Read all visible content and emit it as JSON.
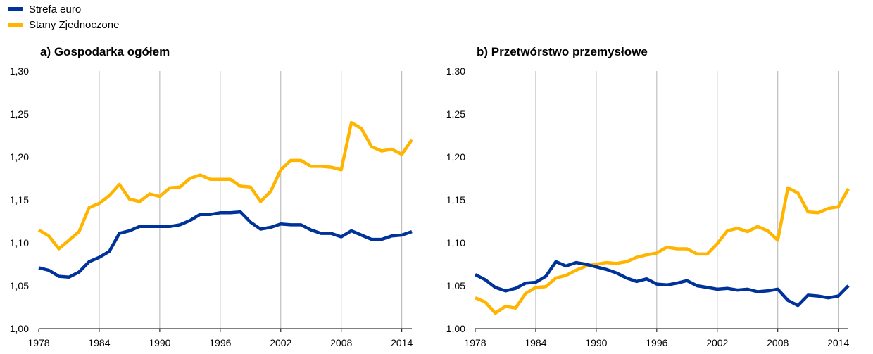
{
  "legend": {
    "items": [
      {
        "label": "Strefa euro",
        "color": "#003399"
      },
      {
        "label": "Stany Zjednoczone",
        "color": "#ffb400"
      }
    ]
  },
  "chart_data": [
    {
      "type": "line",
      "title": "a) Gospodarka ogółem",
      "xlabel": "",
      "ylabel": "",
      "xlim": [
        1978,
        2015
      ],
      "ylim": [
        1.0,
        1.3
      ],
      "x_ticks": [
        1978,
        1984,
        1990,
        1996,
        2002,
        2008,
        2014
      ],
      "y_ticks": [
        "1,00",
        "1,05",
        "1,10",
        "1,15",
        "1,20",
        "1,25",
        "1,30"
      ],
      "grid": "vertical",
      "x": [
        1978,
        1979,
        1980,
        1981,
        1982,
        1983,
        1984,
        1985,
        1986,
        1987,
        1988,
        1989,
        1990,
        1991,
        1992,
        1993,
        1994,
        1995,
        1996,
        1997,
        1998,
        1999,
        2000,
        2001,
        2002,
        2003,
        2004,
        2005,
        2006,
        2007,
        2008,
        2009,
        2010,
        2011,
        2012,
        2013,
        2014,
        2015
      ],
      "series": [
        {
          "name": "Strefa euro",
          "color": "#003399",
          "values": [
            1.071,
            1.068,
            1.061,
            1.06,
            1.066,
            1.078,
            1.083,
            1.09,
            1.111,
            1.114,
            1.119,
            1.119,
            1.119,
            1.119,
            1.121,
            1.126,
            1.133,
            1.133,
            1.135,
            1.135,
            1.136,
            1.124,
            1.116,
            1.118,
            1.122,
            1.121,
            1.121,
            1.115,
            1.111,
            1.111,
            1.107,
            1.114,
            1.109,
            1.104,
            1.104,
            1.108,
            1.109,
            1.113
          ]
        },
        {
          "name": "Stany Zjednoczone",
          "color": "#ffb400",
          "values": [
            1.115,
            1.108,
            1.093,
            1.103,
            1.113,
            1.141,
            1.146,
            1.155,
            1.168,
            1.151,
            1.148,
            1.157,
            1.154,
            1.164,
            1.165,
            1.175,
            1.179,
            1.174,
            1.174,
            1.174,
            1.166,
            1.165,
            1.148,
            1.16,
            1.185,
            1.196,
            1.196,
            1.189,
            1.189,
            1.188,
            1.185,
            1.24,
            1.233,
            1.212,
            1.207,
            1.209,
            1.203,
            1.22
          ]
        }
      ]
    },
    {
      "type": "line",
      "title": "b) Przetwórstwo przemysłowe",
      "xlabel": "",
      "ylabel": "",
      "xlim": [
        1978,
        2015
      ],
      "ylim": [
        1.0,
        1.3
      ],
      "x_ticks": [
        1978,
        1984,
        1990,
        1996,
        2002,
        2008,
        2014
      ],
      "y_ticks": [
        "1,00",
        "1,05",
        "1,10",
        "1,15",
        "1,20",
        "1,25",
        "1,30"
      ],
      "grid": "vertical",
      "x": [
        1978,
        1979,
        1980,
        1981,
        1982,
        1983,
        1984,
        1985,
        1986,
        1987,
        1988,
        1989,
        1990,
        1991,
        1992,
        1993,
        1994,
        1995,
        1996,
        1997,
        1998,
        1999,
        2000,
        2001,
        2002,
        2003,
        2004,
        2005,
        2006,
        2007,
        2008,
        2009,
        2010,
        2011,
        2012,
        2013,
        2014,
        2015
      ],
      "series": [
        {
          "name": "Strefa euro",
          "color": "#003399",
          "values": [
            1.063,
            1.057,
            1.048,
            1.044,
            1.047,
            1.053,
            1.054,
            1.061,
            1.078,
            1.073,
            1.077,
            1.075,
            1.072,
            1.069,
            1.065,
            1.059,
            1.055,
            1.058,
            1.052,
            1.051,
            1.053,
            1.056,
            1.05,
            1.048,
            1.046,
            1.047,
            1.045,
            1.046,
            1.043,
            1.044,
            1.046,
            1.033,
            1.027,
            1.039,
            1.038,
            1.036,
            1.038,
            1.05
          ]
        },
        {
          "name": "Stany Zjednoczone",
          "color": "#ffb400",
          "values": [
            1.036,
            1.031,
            1.018,
            1.026,
            1.024,
            1.041,
            1.048,
            1.049,
            1.059,
            1.062,
            1.068,
            1.073,
            1.075,
            1.077,
            1.076,
            1.078,
            1.083,
            1.086,
            1.088,
            1.095,
            1.093,
            1.093,
            1.087,
            1.087,
            1.099,
            1.114,
            1.117,
            1.113,
            1.119,
            1.114,
            1.103,
            1.164,
            1.158,
            1.136,
            1.135,
            1.14,
            1.142,
            1.163
          ]
        }
      ]
    }
  ]
}
